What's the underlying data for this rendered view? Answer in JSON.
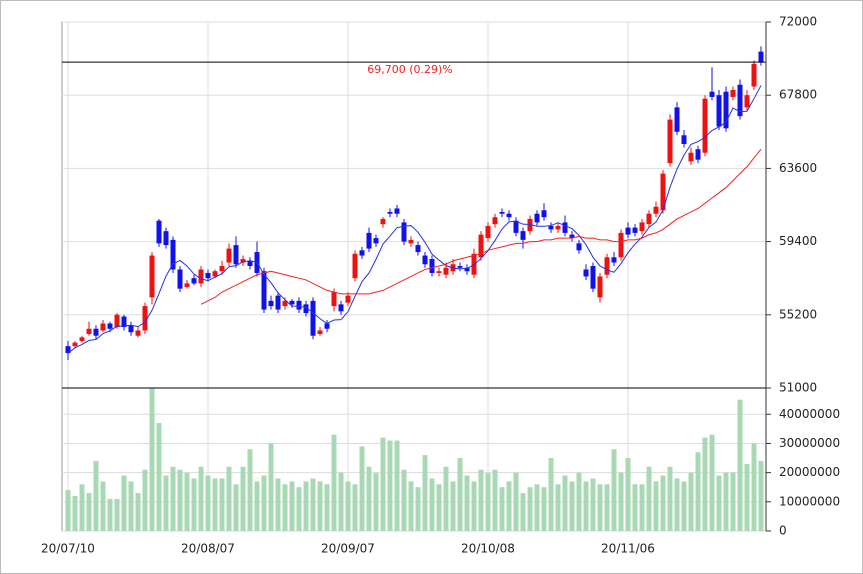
{
  "chart_data": [
    {
      "type": "candlestick",
      "categories": [
        "20/07/10",
        null,
        null,
        null,
        null,
        null,
        null,
        null,
        null,
        null,
        null,
        null,
        null,
        null,
        null,
        null,
        null,
        null,
        null,
        null,
        "20/08/07",
        null,
        null,
        null,
        null,
        null,
        null,
        null,
        null,
        null,
        null,
        null,
        null,
        null,
        null,
        null,
        null,
        null,
        null,
        null,
        "20/09/07",
        null,
        null,
        null,
        null,
        null,
        null,
        null,
        null,
        null,
        null,
        null,
        null,
        null,
        null,
        null,
        null,
        null,
        null,
        null,
        "20/10/08",
        null,
        null,
        null,
        null,
        null,
        null,
        null,
        null,
        null,
        null,
        null,
        null,
        null,
        null,
        null,
        null,
        null,
        null,
        null,
        "20/11/06",
        null,
        null,
        null,
        null,
        null,
        null,
        null,
        null,
        null,
        null,
        null,
        null,
        null,
        null,
        null,
        null,
        null,
        null,
        null
      ],
      "open": [
        53400,
        53400,
        53700,
        54100,
        54400,
        54300,
        54700,
        54500,
        55100,
        54600,
        54000,
        54300,
        56200,
        60600,
        60000,
        59500,
        57800,
        56800,
        57300,
        57000,
        57600,
        57400,
        57700,
        58200,
        59200,
        58200,
        58300,
        58800,
        57700,
        56000,
        56300,
        55700,
        56000,
        56000,
        55800,
        56000,
        54100,
        54700,
        55700,
        55800,
        55900,
        57300,
        58900,
        59900,
        59600,
        60400,
        61100,
        61300,
        60500,
        59300,
        59200,
        58600,
        58400,
        57600,
        57500,
        57700,
        58000,
        57900,
        57500,
        58500,
        59600,
        60400,
        61100,
        61000,
        60600,
        60000,
        60000,
        61000,
        61200,
        60300,
        60100,
        60500,
        59800,
        59300,
        57800,
        58000,
        56200,
        57500,
        58500,
        58500,
        60200,
        60200,
        60000,
        60400,
        61000,
        61200,
        63900,
        67100,
        65500,
        64000,
        64700,
        64500,
        68000,
        67800,
        68000,
        67700,
        68400,
        67100,
        68300,
        70300
      ],
      "high": [
        53700,
        53700,
        54000,
        54800,
        54600,
        54900,
        54800,
        55300,
        55200,
        54800,
        54500,
        55900,
        58800,
        60700,
        60200,
        59700,
        58000,
        57200,
        57500,
        58000,
        57800,
        57800,
        58300,
        59300,
        59700,
        58600,
        58500,
        59400,
        57900,
        56300,
        56500,
        56200,
        56100,
        56200,
        56000,
        56200,
        54500,
        54900,
        56700,
        56000,
        56500,
        58900,
        59100,
        60200,
        59800,
        60800,
        61300,
        61500,
        60700,
        59700,
        59400,
        58800,
        58600,
        57900,
        58200,
        58400,
        58200,
        58100,
        59000,
        60000,
        60500,
        61000,
        61300,
        61200,
        60800,
        60200,
        60900,
        61200,
        61600,
        60500,
        60500,
        60900,
        60000,
        59500,
        58100,
        58200,
        57600,
        58700,
        58800,
        60100,
        60500,
        60400,
        60700,
        61200,
        61700,
        63500,
        66700,
        67400,
        65800,
        64800,
        64900,
        67800,
        69400,
        68100,
        68300,
        68300,
        68700,
        68100,
        69800,
        70600
      ],
      "low": [
        52600,
        53300,
        53600,
        54000,
        53800,
        54200,
        54200,
        54400,
        54300,
        54000,
        53900,
        54100,
        55800,
        59100,
        59000,
        57600,
        56500,
        56700,
        56900,
        56800,
        57100,
        57300,
        57500,
        58000,
        57900,
        58000,
        57800,
        57400,
        55300,
        55500,
        55300,
        55500,
        55600,
        55300,
        55100,
        53800,
        54000,
        54200,
        55400,
        55200,
        55700,
        57100,
        58400,
        58800,
        59100,
        60200,
        60800,
        60800,
        59200,
        59100,
        58600,
        57900,
        57400,
        57400,
        57300,
        57500,
        57700,
        57500,
        57300,
        58300,
        59400,
        60200,
        60800,
        60600,
        59700,
        59000,
        59800,
        60300,
        60600,
        59900,
        59900,
        59700,
        59400,
        58700,
        57200,
        56500,
        55900,
        57300,
        58000,
        58300,
        59600,
        59700,
        59800,
        60200,
        60800,
        61000,
        63700,
        65500,
        64800,
        63800,
        63900,
        64300,
        67500,
        65800,
        65700,
        67500,
        66400,
        66900,
        68100,
        69500
      ],
      "close": [
        53000,
        53600,
        53900,
        54400,
        54000,
        54700,
        54400,
        55200,
        54500,
        54200,
        54300,
        55700,
        58600,
        59300,
        59200,
        57800,
        56700,
        57000,
        57000,
        57800,
        57300,
        57700,
        58000,
        59000,
        58100,
        58400,
        58000,
        57600,
        55500,
        55700,
        55500,
        56000,
        55800,
        55500,
        55300,
        54000,
        54300,
        54400,
        56500,
        55400,
        56300,
        58700,
        58600,
        59000,
        59300,
        60700,
        61000,
        61000,
        59400,
        59500,
        58800,
        58100,
        57600,
        57700,
        57900,
        58100,
        57900,
        57700,
        58700,
        59800,
        60300,
        60800,
        61000,
        60800,
        59900,
        59500,
        60700,
        60500,
        60800,
        60100,
        60300,
        59900,
        59600,
        58900,
        57400,
        56700,
        57400,
        58500,
        58200,
        59900,
        59800,
        59900,
        60500,
        61000,
        61400,
        63300,
        66400,
        65700,
        65000,
        64500,
        64100,
        67600,
        67700,
        66000,
        65900,
        68100,
        66600,
        67800,
        69600,
        69700
      ],
      "up_color": "#ee1111",
      "down_color": "#1111ee",
      "lines": [
        {
          "color": "#2233dd",
          "values": [
            53000,
            53300,
            53500,
            53730,
            53780,
            54120,
            54280,
            54540,
            54560,
            54600,
            54520,
            54780,
            55460,
            56420,
            57420,
            58120,
            58320,
            58000,
            57540,
            57260,
            57160,
            57360,
            57560,
            57960,
            58020,
            58240,
            58300,
            58220,
            57520,
            57040,
            56460,
            56060,
            55700,
            55700,
            55620,
            55320,
            54980,
            54700,
            54900,
            54920,
            55380,
            56260,
            57100,
            57600,
            58380,
            59260,
            59720,
            60200,
            60280,
            60320,
            59940,
            59360,
            58680,
            58340,
            58020,
            57880,
            57840,
            57860,
            58060,
            58440,
            58880,
            59460,
            60120,
            60540,
            60560,
            60400,
            60380,
            60280,
            60280,
            60320,
            60480,
            60320,
            60140,
            59760,
            59220,
            58500,
            58000,
            57780,
            57640,
            58140,
            58760,
            59260,
            59660,
            60220,
            60520,
            61220,
            62520,
            63560,
            64360,
            64980,
            65140,
            65380,
            65780,
            65980,
            66260,
            67060,
            66860,
            66880,
            67600,
            68360
          ]
        },
        {
          "color": "#ee2222",
          "values": [
            null,
            null,
            null,
            null,
            null,
            null,
            null,
            null,
            null,
            null,
            null,
            null,
            null,
            null,
            null,
            null,
            null,
            null,
            null,
            55800,
            56000,
            56200,
            56500,
            56700,
            56900,
            57100,
            57300,
            57500,
            57600,
            57700,
            57600,
            57500,
            57400,
            57300,
            57200,
            57000,
            56800,
            56600,
            56500,
            56400,
            56400,
            56400,
            56400,
            56400,
            56500,
            56600,
            56800,
            57000,
            57200,
            57400,
            57600,
            57800,
            57900,
            58000,
            58100,
            58300,
            58400,
            58500,
            58600,
            58700,
            58900,
            59000,
            59100,
            59200,
            59300,
            59300,
            59400,
            59400,
            59500,
            59500,
            59600,
            59600,
            59600,
            59700,
            59600,
            59600,
            59500,
            59500,
            59400,
            59400,
            59500,
            59500,
            59600,
            59800,
            59900,
            60100,
            60400,
            60700,
            60900,
            61100,
            61300,
            61600,
            61900,
            62200,
            62500,
            62900,
            63300,
            63700,
            64200,
            64700
          ]
        }
      ],
      "reference_line": {
        "value": 69700,
        "label": "69,700 (0.29)%",
        "color": "#ee2222"
      },
      "ylim": [
        51000,
        72000
      ],
      "yticks": [
        51000,
        55200,
        59400,
        63600,
        67800,
        72000
      ],
      "grid": true
    },
    {
      "type": "bar",
      "color": "#a8d8b4",
      "values": [
        14000000,
        12000000,
        16000000,
        13000000,
        24000000,
        17000000,
        11000000,
        11000000,
        19000000,
        17000000,
        13000000,
        21000000,
        49000000,
        37000000,
        19000000,
        22000000,
        21000000,
        20000000,
        18000000,
        22000000,
        19000000,
        18000000,
        18000000,
        22000000,
        16000000,
        22000000,
        28000000,
        17000000,
        19000000,
        30000000,
        18000000,
        16000000,
        17000000,
        15000000,
        17000000,
        18000000,
        17000000,
        16000000,
        33000000,
        20000000,
        17000000,
        16000000,
        29000000,
        22000000,
        20000000,
        32000000,
        31000000,
        31000000,
        21000000,
        17000000,
        15000000,
        26000000,
        18000000,
        16000000,
        22000000,
        17000000,
        25000000,
        19000000,
        17000000,
        21000000,
        20000000,
        21000000,
        15000000,
        17000000,
        20000000,
        13000000,
        15000000,
        16000000,
        15000000,
        25000000,
        16000000,
        19000000,
        17000000,
        20000000,
        17000000,
        18000000,
        16000000,
        16000000,
        28000000,
        20000000,
        25000000,
        16000000,
        16000000,
        22000000,
        17000000,
        19000000,
        22000000,
        18000000,
        17000000,
        20000000,
        27000000,
        32000000,
        33000000,
        19000000,
        20000000,
        20000000,
        45000000,
        23000000,
        30000000,
        24000000
      ],
      "ylim": [
        0,
        49000000
      ],
      "yticks": [
        0,
        10000000,
        20000000,
        30000000,
        40000000
      ],
      "grid": true
    }
  ]
}
